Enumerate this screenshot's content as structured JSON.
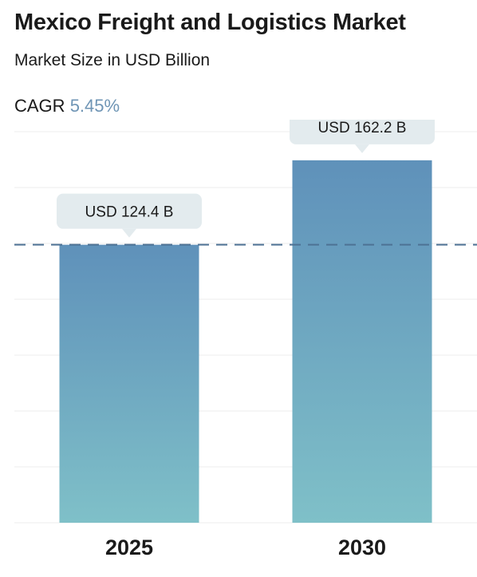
{
  "header": {
    "title": "Mexico Freight and Logistics Market",
    "subtitle": "Market Size in USD Billion",
    "cagr_label": "CAGR",
    "cagr_value": "5.45%"
  },
  "colors": {
    "bar_top": "#5f91ba",
    "bar_bottom": "#7fc0c8",
    "bubble_bg": "#e3ebee",
    "dash_line": "#4d7294",
    "grid": "#ededed",
    "cagr_accent": "#6f95b5"
  },
  "chart_data": {
    "type": "bar",
    "categories": [
      "2025",
      "2030"
    ],
    "values": [
      124.4,
      162.2
    ],
    "data_labels": [
      "USD 124.4 B",
      "USD 162.2 B"
    ],
    "ylim": [
      0,
      175
    ],
    "reference_line": 124.4,
    "grid": true
  }
}
